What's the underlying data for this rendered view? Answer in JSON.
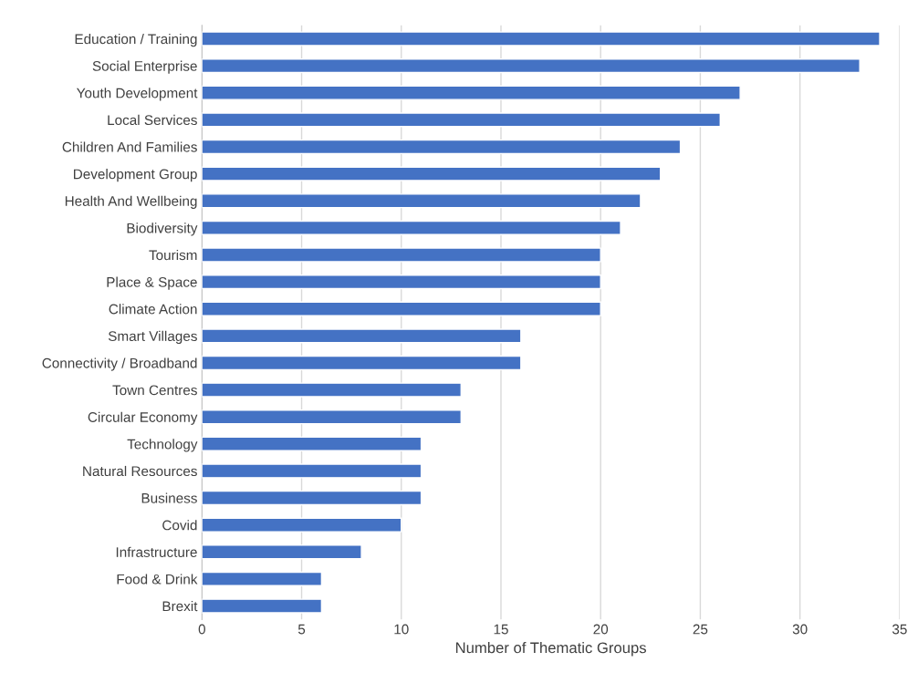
{
  "chart_data": {
    "type": "bar",
    "orientation": "horizontal",
    "categories": [
      "Education / Training",
      "Social Enterprise",
      "Youth Development",
      "Local Services",
      "Children And Families",
      "Development Group",
      "Health And Wellbeing",
      "Biodiversity",
      "Tourism",
      "Place & Space",
      "Climate Action",
      "Smart Villages",
      "Connectivity / Broadband",
      "Town Centres",
      "Circular Economy",
      "Technology",
      "Natural Resources",
      "Business",
      "Covid",
      "Infrastructure",
      "Food & Drink",
      "Brexit"
    ],
    "values": [
      34,
      33,
      27,
      26,
      24,
      23,
      22,
      21,
      20,
      20,
      20,
      16,
      16,
      13,
      13,
      11,
      11,
      11,
      10,
      8,
      6,
      6
    ],
    "color": "#4472c4",
    "xlabel": "Number of Thematic Groups",
    "xlim": [
      0,
      35
    ],
    "xticks": [
      0,
      5,
      10,
      15,
      20,
      25,
      30,
      35
    ],
    "grid": "x",
    "legend": false
  }
}
